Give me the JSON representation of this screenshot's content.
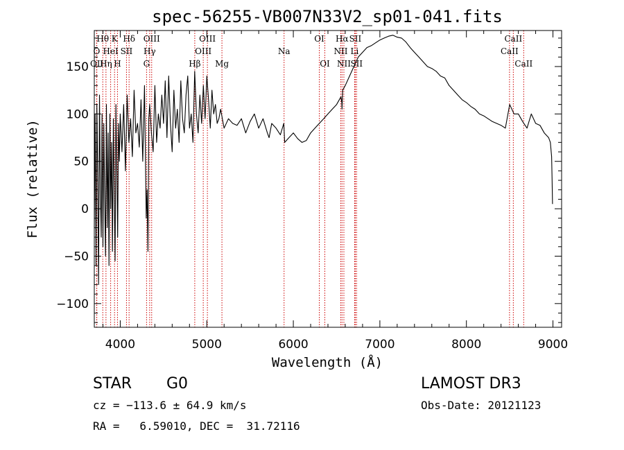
{
  "chart_data": {
    "type": "line",
    "title": "spec-56255-VB007N33V2_sp01-041.fits",
    "xlabel": "Wavelength (Å)",
    "ylabel": "Flux (relative)",
    "xlim": [
      3700,
      9100
    ],
    "ylim": [
      -125,
      188
    ],
    "x_ticks": [
      4000,
      5000,
      6000,
      7000,
      8000,
      9000
    ],
    "x_tick_labels": [
      "4000",
      "5000",
      "6000",
      "7000",
      "8000",
      "9000"
    ],
    "y_ticks": [
      -100,
      -50,
      0,
      50,
      100,
      150
    ],
    "y_tick_labels": [
      "−100",
      "−50",
      "0",
      "50",
      "100",
      "150"
    ],
    "series": [
      {
        "name": "spectrum",
        "color": "#000000",
        "x": [
          3700,
          3710,
          3720,
          3730,
          3740,
          3750,
          3760,
          3770,
          3780,
          3790,
          3800,
          3810,
          3820,
          3830,
          3840,
          3850,
          3860,
          3870,
          3880,
          3890,
          3900,
          3910,
          3920,
          3930,
          3940,
          3950,
          3960,
          3970,
          3980,
          3990,
          4000,
          4020,
          4040,
          4060,
          4080,
          4100,
          4120,
          4140,
          4160,
          4180,
          4200,
          4220,
          4240,
          4260,
          4280,
          4300,
          4310,
          4320,
          4330,
          4340,
          4360,
          4380,
          4400,
          4420,
          4440,
          4460,
          4480,
          4500,
          4520,
          4540,
          4560,
          4580,
          4600,
          4620,
          4640,
          4660,
          4680,
          4700,
          4720,
          4740,
          4760,
          4780,
          4800,
          4820,
          4840,
          4860,
          4880,
          4900,
          4920,
          4940,
          4960,
          4980,
          5000,
          5020,
          5040,
          5060,
          5080,
          5100,
          5120,
          5140,
          5160,
          5180,
          5200,
          5250,
          5300,
          5350,
          5400,
          5450,
          5500,
          5550,
          5600,
          5650,
          5700,
          5720,
          5750,
          5800,
          5850,
          5890,
          5900,
          5950,
          6000,
          6050,
          6100,
          6150,
          6200,
          6250,
          6300,
          6350,
          6400,
          6450,
          6500,
          6550,
          6560,
          6563,
          6570,
          6600,
          6650,
          6700,
          6750,
          6800,
          6850,
          6900,
          6950,
          7000,
          7050,
          7100,
          7150,
          7200,
          7250,
          7300,
          7350,
          7400,
          7450,
          7500,
          7550,
          7600,
          7650,
          7700,
          7750,
          7800,
          7850,
          7900,
          7950,
          8000,
          8050,
          8100,
          8150,
          8200,
          8250,
          8300,
          8350,
          8400,
          8450,
          8500,
          8550,
          8600,
          8650,
          8700,
          8750,
          8800,
          8850,
          8900,
          8950,
          8970,
          8985,
          8990,
          8995
        ],
        "y": [
          -20,
          100,
          -60,
          110,
          30,
          -80,
          120,
          20,
          -30,
          100,
          -40,
          90,
          10,
          -50,
          110,
          -20,
          80,
          -60,
          100,
          0,
          70,
          -45,
          95,
          20,
          -55,
          110,
          40,
          -30,
          90,
          50,
          100,
          60,
          110,
          40,
          120,
          70,
          95,
          55,
          125,
          80,
          90,
          65,
          115,
          50,
          130,
          -10,
          20,
          -45,
          95,
          110,
          80,
          60,
          130,
          70,
          100,
          85,
          120,
          90,
          135,
          75,
          140,
          90,
          60,
          125,
          85,
          105,
          70,
          135,
          95,
          80,
          120,
          140,
          85,
          100,
          70,
          145,
          100,
          80,
          120,
          90,
          130,
          95,
          140,
          115,
          85,
          125,
          100,
          110,
          90,
          95,
          105,
          95,
          85,
          95,
          90,
          88,
          95,
          80,
          92,
          100,
          85,
          95,
          80,
          75,
          90,
          85,
          78,
          90,
          70,
          75,
          80,
          74,
          70,
          72,
          80,
          85,
          90,
          95,
          100,
          105,
          110,
          118,
          112,
          105,
          125,
          130,
          140,
          150,
          160,
          165,
          170,
          172,
          175,
          178,
          180,
          182,
          183,
          181,
          180,
          176,
          170,
          165,
          160,
          155,
          150,
          148,
          145,
          140,
          138,
          130,
          125,
          120,
          115,
          112,
          108,
          105,
          100,
          98,
          95,
          92,
          90,
          88,
          85,
          110,
          100,
          100,
          92,
          85,
          100,
          90,
          88,
          80,
          75,
          70,
          55,
          30,
          5
        ]
      }
    ],
    "line_marks": [
      {
        "label": "Hθ",
        "wavelength": 3798,
        "row": 0
      },
      {
        "label": "O",
        "wavelength": 3727,
        "row": 1
      },
      {
        "label": "OII",
        "wavelength": 3729,
        "row": 2
      },
      {
        "label": "Hη",
        "wavelength": 3835,
        "row": 2
      },
      {
        "label": "HeI",
        "wavelength": 3889,
        "row": 1
      },
      {
        "label": "K",
        "wavelength": 3934,
        "row": 0
      },
      {
        "label": "H",
        "wavelength": 3968,
        "row": 2
      },
      {
        "label": "SII",
        "wavelength": 4072,
        "row": 1
      },
      {
        "label": "Hδ",
        "wavelength": 4102,
        "row": 0
      },
      {
        "label": "G",
        "wavelength": 4304,
        "row": 2
      },
      {
        "label": "OIII",
        "wavelength": 4363,
        "row": 0
      },
      {
        "label": "Hγ",
        "wavelength": 4340,
        "row": 1
      },
      {
        "label": "Hβ",
        "wavelength": 4861,
        "row": 2
      },
      {
        "label": "OIII",
        "wavelength": 5007,
        "row": 0
      },
      {
        "label": "OIII",
        "wavelength": 4959,
        "row": 1
      },
      {
        "label": "Mg",
        "wavelength": 5175,
        "row": 2
      },
      {
        "label": "Na",
        "wavelength": 5893,
        "row": 1
      },
      {
        "label": "OI",
        "wavelength": 6300,
        "row": 0
      },
      {
        "label": "OI",
        "wavelength": 6364,
        "row": 2
      },
      {
        "label": "Hα",
        "wavelength": 6563,
        "row": 0
      },
      {
        "label": "SII",
        "wavelength": 6716,
        "row": 0
      },
      {
        "label": "NII",
        "wavelength": 6548,
        "row": 1
      },
      {
        "label": "Li",
        "wavelength": 6708,
        "row": 1
      },
      {
        "label": "NII",
        "wavelength": 6584,
        "row": 2
      },
      {
        "label": "SII",
        "wavelength": 6731,
        "row": 2
      },
      {
        "label": "CaII",
        "wavelength": 8542,
        "row": 0
      },
      {
        "label": "CaII",
        "wavelength": 8498,
        "row": 1
      },
      {
        "label": "CaII",
        "wavelength": 8662,
        "row": 2
      }
    ],
    "mark_color": "#cc0000"
  },
  "info": {
    "class_label": "STAR",
    "subclass": "G0",
    "survey": "LAMOST DR3",
    "cz": "cz = −113.6 ± 64.9 km/s",
    "obs_date": "Obs-Date: 20121123",
    "coords": "RA =   6.59010, DEC =  31.72116"
  }
}
